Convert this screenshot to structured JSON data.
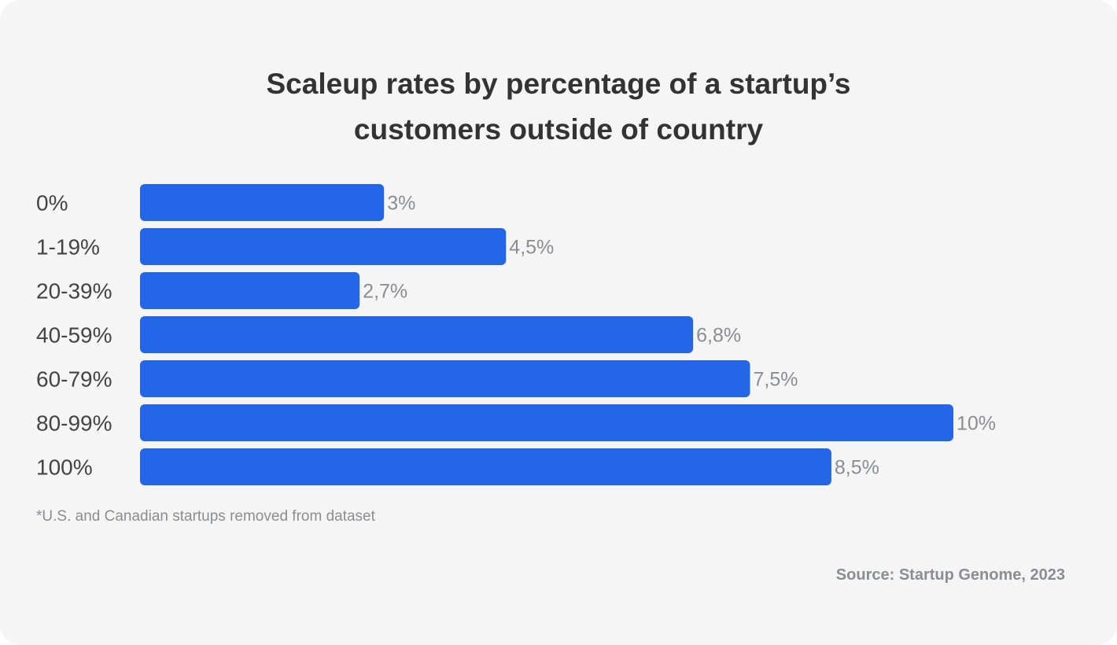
{
  "chart_data": {
    "type": "bar",
    "orientation": "horizontal",
    "title": "Scaleup rates by percentage of a startup’s customers outside of country",
    "title_lines": [
      "Scaleup rates by percentage of a startup’s",
      "customers outside of country"
    ],
    "categories": [
      "0%",
      "1-19%",
      "20-39%",
      "40-59%",
      "60-79%",
      "80-99%",
      "100%"
    ],
    "values": [
      3,
      4.5,
      2.7,
      6.8,
      7.5,
      10,
      8.5
    ],
    "data_labels": [
      "3%",
      "4,5%",
      "2,7%",
      "6,8%",
      "7,5%",
      "10%",
      "8,5%"
    ],
    "xlabel": "",
    "ylabel": "",
    "xlim": [
      0,
      10
    ],
    "grid": false,
    "bar_color": "#2366e8"
  },
  "footnote": "*U.S. and Canadian startups removed from dataset",
  "source": "Source:  Startup Genome, 2023"
}
